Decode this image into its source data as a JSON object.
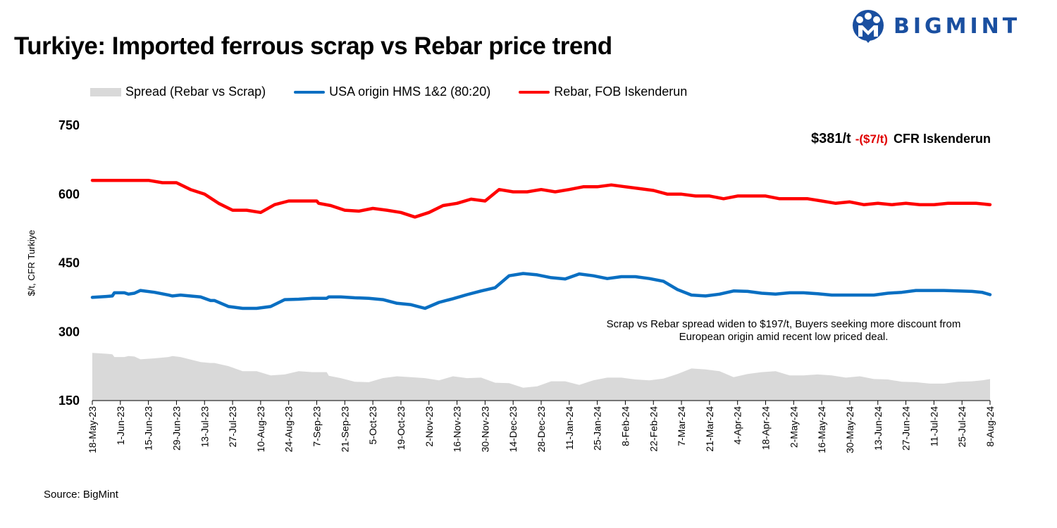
{
  "title": "Turkiye: Imported ferrous scrap vs Rebar price trend",
  "logo": {
    "text": "BIGMINT",
    "icon": "bigmint-logo-icon",
    "color": "#1a4fa0"
  },
  "legend": [
    {
      "label": "Spread (Rebar vs Scrap)",
      "type": "area",
      "color": "#d9d9d9"
    },
    {
      "label": "USA origin HMS 1&2 (80:20)",
      "type": "line",
      "color": "#0a6fc2"
    },
    {
      "label": "Rebar, FOB Iskenderun",
      "type": "line",
      "color": "#ff0000"
    }
  ],
  "callout": {
    "price": "$381/t",
    "change": "-($7/t)",
    "label": "CFR Iskenderun"
  },
  "annotation": {
    "line1": "Scrap vs Rebar spread widen to $197/t, Buyers seeking more discount from",
    "line2": "European origin amid recent low priced deal."
  },
  "source": "Source: BigMint",
  "chart_data": {
    "type": "line",
    "ylabel": "$/t, CFR Turkiye",
    "ylim": [
      150,
      750
    ],
    "yticks": [
      "150",
      "300",
      "450",
      "600",
      "750"
    ],
    "grid": false,
    "legend_position": "top",
    "x_tick_labels": [
      "18-May-23",
      "1-Jun-23",
      "15-Jun-23",
      "29-Jun-23",
      "13-Jul-23",
      "27-Jul-23",
      "10-Aug-23",
      "24-Aug-23",
      "7-Sep-23",
      "21-Sep-23",
      "5-Oct-23",
      "19-Oct-23",
      "2-Nov-23",
      "16-Nov-23",
      "30-Nov-23",
      "14-Dec-23",
      "28-Dec-23",
      "11-Jan-24",
      "25-Jan-24",
      "8-Feb-24",
      "22-Feb-24",
      "7-Mar-24",
      "21-Mar-24",
      "4-Apr-24",
      "18-Apr-24",
      "2-May-24",
      "16-May-24",
      "30-May-24",
      "13-Jun-24",
      "27-Jun-24",
      "11-Jul-24",
      "25-Jul-24",
      "8-Aug-24"
    ],
    "x_start": "2023-05-18",
    "x_end": "2024-08-08",
    "series": [
      {
        "name": "Rebar, FOB Iskenderun",
        "type": "line",
        "color": "#ff0000",
        "points": [
          [
            "2023-05-18",
            630
          ],
          [
            "2023-06-01",
            630
          ],
          [
            "2023-06-15",
            630
          ],
          [
            "2023-06-22",
            625
          ],
          [
            "2023-06-29",
            625
          ],
          [
            "2023-07-06",
            610
          ],
          [
            "2023-07-13",
            600
          ],
          [
            "2023-07-20",
            580
          ],
          [
            "2023-07-27",
            565
          ],
          [
            "2023-08-03",
            565
          ],
          [
            "2023-08-10",
            560
          ],
          [
            "2023-08-17",
            577
          ],
          [
            "2023-08-24",
            585
          ],
          [
            "2023-08-31",
            585
          ],
          [
            "2023-09-07",
            585
          ],
          [
            "2023-09-08",
            580
          ],
          [
            "2023-09-14",
            575
          ],
          [
            "2023-09-21",
            565
          ],
          [
            "2023-09-28",
            563
          ],
          [
            "2023-10-05",
            569
          ],
          [
            "2023-10-12",
            565
          ],
          [
            "2023-10-19",
            560
          ],
          [
            "2023-10-26",
            550
          ],
          [
            "2023-11-02",
            560
          ],
          [
            "2023-11-09",
            575
          ],
          [
            "2023-11-16",
            580
          ],
          [
            "2023-11-23",
            589
          ],
          [
            "2023-11-30",
            585
          ],
          [
            "2023-12-07",
            610
          ],
          [
            "2023-12-14",
            605
          ],
          [
            "2023-12-21",
            605
          ],
          [
            "2023-12-28",
            610
          ],
          [
            "2024-01-04",
            605
          ],
          [
            "2024-01-11",
            610
          ],
          [
            "2024-01-18",
            616
          ],
          [
            "2024-01-25",
            616
          ],
          [
            "2024-02-01",
            620
          ],
          [
            "2024-02-08",
            616
          ],
          [
            "2024-02-15",
            612
          ],
          [
            "2024-02-22",
            608
          ],
          [
            "2024-02-29",
            600
          ],
          [
            "2024-03-07",
            600
          ],
          [
            "2024-03-14",
            596
          ],
          [
            "2024-03-21",
            596
          ],
          [
            "2024-03-28",
            590
          ],
          [
            "2024-04-04",
            596
          ],
          [
            "2024-04-11",
            596
          ],
          [
            "2024-04-18",
            596
          ],
          [
            "2024-04-25",
            590
          ],
          [
            "2024-05-02",
            590
          ],
          [
            "2024-05-09",
            590
          ],
          [
            "2024-05-16",
            585
          ],
          [
            "2024-05-23",
            580
          ],
          [
            "2024-05-30",
            583
          ],
          [
            "2024-06-06",
            577
          ],
          [
            "2024-06-13",
            580
          ],
          [
            "2024-06-20",
            577
          ],
          [
            "2024-06-27",
            580
          ],
          [
            "2024-07-04",
            577
          ],
          [
            "2024-07-11",
            577
          ],
          [
            "2024-07-18",
            580
          ],
          [
            "2024-07-25",
            580
          ],
          [
            "2024-08-01",
            580
          ],
          [
            "2024-08-08",
            577
          ]
        ]
      },
      {
        "name": "USA origin HMS 1&2 (80:20)",
        "type": "line",
        "color": "#0a6fc2",
        "points": [
          [
            "2023-05-18",
            375
          ],
          [
            "2023-05-25",
            377
          ],
          [
            "2023-05-28",
            378
          ],
          [
            "2023-05-29",
            385
          ],
          [
            "2023-06-03",
            385
          ],
          [
            "2023-06-05",
            382
          ],
          [
            "2023-06-08",
            384
          ],
          [
            "2023-06-11",
            390
          ],
          [
            "2023-06-18",
            386
          ],
          [
            "2023-06-25",
            380
          ],
          [
            "2023-06-27",
            378
          ],
          [
            "2023-07-01",
            380
          ],
          [
            "2023-07-11",
            376
          ],
          [
            "2023-07-16",
            368
          ],
          [
            "2023-07-18",
            368
          ],
          [
            "2023-07-25",
            355
          ],
          [
            "2023-08-01",
            351
          ],
          [
            "2023-08-08",
            351
          ],
          [
            "2023-08-15",
            355
          ],
          [
            "2023-08-22",
            370
          ],
          [
            "2023-08-29",
            371
          ],
          [
            "2023-09-05",
            373
          ],
          [
            "2023-09-12",
            373
          ],
          [
            "2023-09-13",
            376
          ],
          [
            "2023-09-19",
            376
          ],
          [
            "2023-09-26",
            374
          ],
          [
            "2023-10-03",
            373
          ],
          [
            "2023-10-10",
            370
          ],
          [
            "2023-10-17",
            362
          ],
          [
            "2023-10-24",
            359
          ],
          [
            "2023-10-31",
            351
          ],
          [
            "2023-11-07",
            364
          ],
          [
            "2023-11-14",
            372
          ],
          [
            "2023-11-21",
            381
          ],
          [
            "2023-11-28",
            389
          ],
          [
            "2023-12-05",
            396
          ],
          [
            "2023-12-12",
            422
          ],
          [
            "2023-12-19",
            427
          ],
          [
            "2023-12-26",
            424
          ],
          [
            "2024-01-02",
            418
          ],
          [
            "2024-01-09",
            415
          ],
          [
            "2024-01-16",
            426
          ],
          [
            "2024-01-23",
            422
          ],
          [
            "2024-01-30",
            416
          ],
          [
            "2024-02-06",
            420
          ],
          [
            "2024-02-13",
            420
          ],
          [
            "2024-02-20",
            416
          ],
          [
            "2024-02-27",
            410
          ],
          [
            "2024-03-05",
            392
          ],
          [
            "2024-03-12",
            380
          ],
          [
            "2024-03-19",
            378
          ],
          [
            "2024-03-26",
            382
          ],
          [
            "2024-04-02",
            389
          ],
          [
            "2024-04-09",
            388
          ],
          [
            "2024-04-16",
            384
          ],
          [
            "2024-04-23",
            382
          ],
          [
            "2024-04-30",
            385
          ],
          [
            "2024-05-07",
            385
          ],
          [
            "2024-05-14",
            383
          ],
          [
            "2024-05-21",
            380
          ],
          [
            "2024-05-28",
            380
          ],
          [
            "2024-06-04",
            380
          ],
          [
            "2024-06-11",
            380
          ],
          [
            "2024-06-18",
            384
          ],
          [
            "2024-06-25",
            386
          ],
          [
            "2024-07-02",
            390
          ],
          [
            "2024-07-09",
            390
          ],
          [
            "2024-07-16",
            390
          ],
          [
            "2024-07-23",
            389
          ],
          [
            "2024-07-30",
            388
          ],
          [
            "2024-08-04",
            386
          ],
          [
            "2024-08-08",
            381
          ]
        ]
      },
      {
        "name": "Spread (Rebar vs Scrap)",
        "type": "area",
        "color": "#d9d9d9",
        "points": [
          [
            "2023-05-18",
            254
          ],
          [
            "2023-05-25",
            252
          ],
          [
            "2023-05-28",
            251
          ],
          [
            "2023-05-29",
            245
          ],
          [
            "2023-06-03",
            245
          ],
          [
            "2023-06-05",
            247
          ],
          [
            "2023-06-08",
            246
          ],
          [
            "2023-06-11",
            240
          ],
          [
            "2023-06-18",
            242
          ],
          [
            "2023-06-25",
            245
          ],
          [
            "2023-06-27",
            247
          ],
          [
            "2023-07-01",
            245
          ],
          [
            "2023-07-11",
            234
          ],
          [
            "2023-07-16",
            232
          ],
          [
            "2023-07-18",
            232
          ],
          [
            "2023-07-25",
            225
          ],
          [
            "2023-08-01",
            214
          ],
          [
            "2023-08-08",
            214
          ],
          [
            "2023-08-15",
            205
          ],
          [
            "2023-08-22",
            207
          ],
          [
            "2023-08-29",
            214
          ],
          [
            "2023-09-05",
            212
          ],
          [
            "2023-09-12",
            212
          ],
          [
            "2023-09-13",
            204
          ],
          [
            "2023-09-19",
            199
          ],
          [
            "2023-09-26",
            191
          ],
          [
            "2023-10-03",
            190
          ],
          [
            "2023-10-10",
            199
          ],
          [
            "2023-10-17",
            203
          ],
          [
            "2023-10-24",
            201
          ],
          [
            "2023-10-31",
            199
          ],
          [
            "2023-11-07",
            194
          ],
          [
            "2023-11-14",
            203
          ],
          [
            "2023-11-21",
            199
          ],
          [
            "2023-11-28",
            200
          ],
          [
            "2023-12-05",
            189
          ],
          [
            "2023-12-12",
            188
          ],
          [
            "2023-12-19",
            178
          ],
          [
            "2023-12-26",
            181
          ],
          [
            "2024-01-02",
            192
          ],
          [
            "2024-01-09",
            192
          ],
          [
            "2024-01-16",
            184
          ],
          [
            "2024-01-23",
            194
          ],
          [
            "2024-01-30",
            200
          ],
          [
            "2024-02-06",
            200
          ],
          [
            "2024-02-13",
            196
          ],
          [
            "2024-02-20",
            194
          ],
          [
            "2024-02-27",
            198
          ],
          [
            "2024-03-05",
            208
          ],
          [
            "2024-03-12",
            220
          ],
          [
            "2024-03-19",
            218
          ],
          [
            "2024-03-26",
            214
          ],
          [
            "2024-04-02",
            201
          ],
          [
            "2024-04-09",
            208
          ],
          [
            "2024-04-16",
            212
          ],
          [
            "2024-04-23",
            214
          ],
          [
            "2024-04-30",
            205
          ],
          [
            "2024-05-07",
            205
          ],
          [
            "2024-05-14",
            207
          ],
          [
            "2024-05-21",
            205
          ],
          [
            "2024-05-28",
            200
          ],
          [
            "2024-06-04",
            203
          ],
          [
            "2024-06-11",
            197
          ],
          [
            "2024-06-18",
            196
          ],
          [
            "2024-06-25",
            191
          ],
          [
            "2024-07-02",
            190
          ],
          [
            "2024-07-09",
            187
          ],
          [
            "2024-07-16",
            187
          ],
          [
            "2024-07-23",
            191
          ],
          [
            "2024-07-30",
            192
          ],
          [
            "2024-08-04",
            194
          ],
          [
            "2024-08-08",
            197
          ]
        ]
      }
    ]
  }
}
